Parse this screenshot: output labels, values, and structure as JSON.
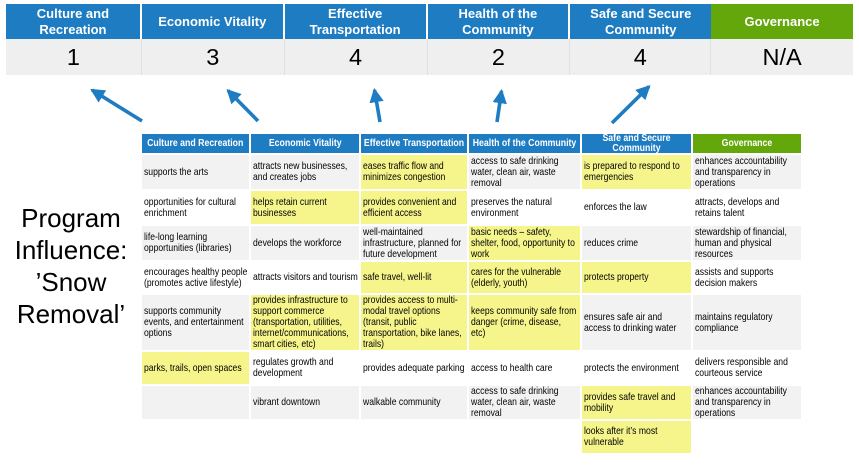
{
  "title": "Program Influence: ’Snow Removal’",
  "colors": {
    "header_blue": "#1e7cc2",
    "header_green": "#64a70b",
    "highlight_yellow": "#f5f58c",
    "score_band_gray": "#efefef",
    "banded_row_gray": "#f2f2f2",
    "arrow_blue": "#1e7cc2"
  },
  "scoreband": {
    "columns": [
      {
        "label": "Culture and\nRecreation",
        "score": "1",
        "theme": "blue"
      },
      {
        "label": "Economic Vitality",
        "score": "3",
        "theme": "blue"
      },
      {
        "label": "Effective\nTransportation",
        "score": "4",
        "theme": "blue"
      },
      {
        "label": "Health of the\nCommunity",
        "score": "2",
        "theme": "blue"
      },
      {
        "label": "Safe and Secure\nCommunity",
        "score": "4",
        "theme": "blue"
      },
      {
        "label": "Governance",
        "score": "N/A",
        "theme": "green"
      }
    ]
  },
  "matrix": {
    "headers": [
      {
        "label": "Culture and Recreation",
        "theme": "blue"
      },
      {
        "label": "Economic Vitality",
        "theme": "blue"
      },
      {
        "label": "Effective Transportation",
        "theme": "blue"
      },
      {
        "label": "Health of the Community",
        "theme": "blue"
      },
      {
        "label": "Safe and Secure\nCommunity",
        "theme": "blue"
      },
      {
        "label": "Governance",
        "theme": "green"
      }
    ],
    "rows": [
      {
        "cells": [
          {
            "text": "supports the arts",
            "highlight": false
          },
          {
            "text": "attracts new businesses, and creates jobs",
            "highlight": false
          },
          {
            "text": "eases traffic flow and minimizes congestion",
            "highlight": true
          },
          {
            "text": "access to safe drinking water, clean air, waste removal",
            "highlight": false
          },
          {
            "text": "is prepared to respond to emergencies",
            "highlight": true
          },
          {
            "text": "enhances accountability and transparency in operations",
            "highlight": false
          }
        ]
      },
      {
        "cells": [
          {
            "text": "opportunities for cultural enrichment",
            "highlight": false
          },
          {
            "text": "helps retain current businesses",
            "highlight": true
          },
          {
            "text": "provides convenient and efficient access",
            "highlight": true
          },
          {
            "text": "preserves the natural environment",
            "highlight": false
          },
          {
            "text": "enforces the law",
            "highlight": false
          },
          {
            "text": "attracts, develops and retains talent",
            "highlight": false
          }
        ]
      },
      {
        "cells": [
          {
            "text": "life-long learning opportunities (libraries)",
            "highlight": false
          },
          {
            "text": "develops the workforce",
            "highlight": false
          },
          {
            "text": "well-maintained infrastructure, planned for future development",
            "highlight": false
          },
          {
            "text": "basic needs – safety, shelter, food, opportunity to work",
            "highlight": true
          },
          {
            "text": "reduces crime",
            "highlight": false
          },
          {
            "text": "stewardship of financial, human and physical resources",
            "highlight": false
          }
        ]
      },
      {
        "cells": [
          {
            "text": "encourages healthy people (promotes active lifestyle)",
            "highlight": false
          },
          {
            "text": "attracts visitors and tourism",
            "highlight": false
          },
          {
            "text": "safe travel, well-lit",
            "highlight": true
          },
          {
            "text": "cares for the vulnerable (elderly, youth)",
            "highlight": true
          },
          {
            "text": "protects property",
            "highlight": true
          },
          {
            "text": "assists and supports decision makers",
            "highlight": false
          }
        ]
      },
      {
        "cells": [
          {
            "text": "supports community events, and entertainment options",
            "highlight": false
          },
          {
            "text": "provides infrastructure to support commerce (transportation, utilities, internet/communications, smart cities, etc)",
            "highlight": true
          },
          {
            "text": "provides access to multi-modal travel options (transit, public transportation, bike lanes, trails)",
            "highlight": true
          },
          {
            "text": "keeps community safe from danger (crime, disease, etc)",
            "highlight": true
          },
          {
            "text": "ensures safe air and access to drinking water",
            "highlight": false
          },
          {
            "text": "maintains regulatory compliance",
            "highlight": false
          }
        ]
      },
      {
        "cells": [
          {
            "text": "parks, trails, open spaces",
            "highlight": true
          },
          {
            "text": "regulates growth and development",
            "highlight": false
          },
          {
            "text": "provides adequate parking",
            "highlight": false
          },
          {
            "text": "access to health care",
            "highlight": false
          },
          {
            "text": "protects the environment",
            "highlight": false
          },
          {
            "text": "delivers responsible and courteous service",
            "highlight": false
          }
        ]
      },
      {
        "cells": [
          {
            "text": "",
            "highlight": false
          },
          {
            "text": "vibrant downtown",
            "highlight": false
          },
          {
            "text": "walkable community",
            "highlight": false
          },
          {
            "text": "access to safe drinking water, clean air, waste removal",
            "highlight": false
          },
          {
            "text": "provides safe travel and mobility",
            "highlight": true
          },
          {
            "text": "enhances accountability and transparency in operations",
            "highlight": false
          }
        ]
      },
      {
        "cells": [
          {
            "text": "",
            "highlight": false
          },
          {
            "text": "",
            "highlight": false
          },
          {
            "text": "",
            "highlight": false
          },
          {
            "text": "",
            "highlight": false
          },
          {
            "text": "looks after it’s most vulnerable",
            "highlight": true
          },
          {
            "text": "",
            "highlight": false
          }
        ]
      }
    ]
  }
}
